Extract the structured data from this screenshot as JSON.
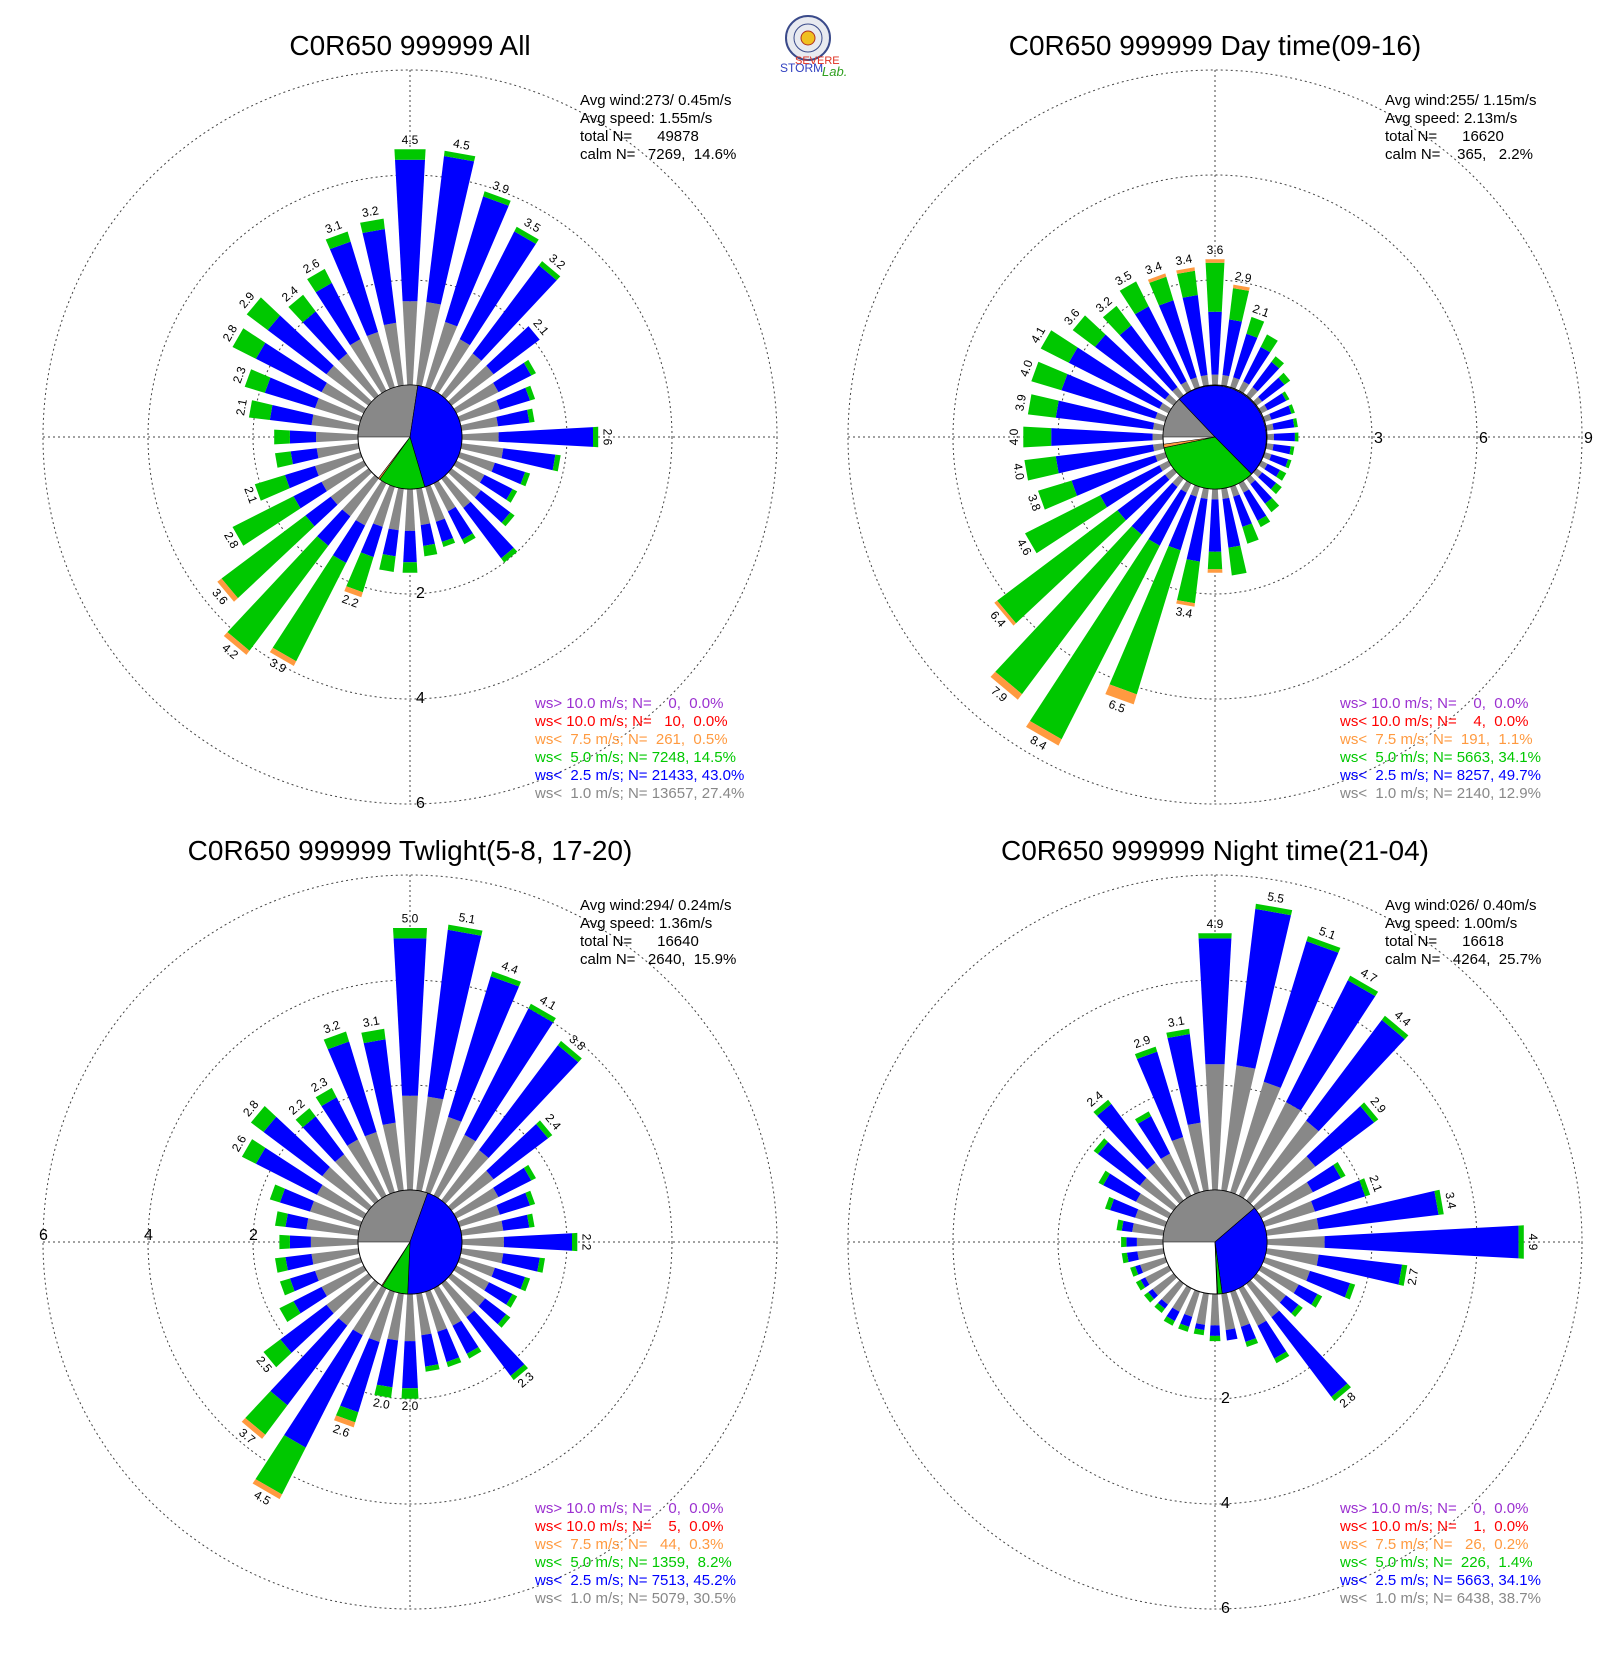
{
  "logo": {
    "text_severe": "SEVERE",
    "text_storm": "STORM",
    "text_lab": "Lab."
  },
  "colors": {
    "gt10": "#9b30d0",
    "lt10": "#ff0000",
    "lt75": "#ff9a40",
    "lt5": "#00c800",
    "lt25": "#0000ff",
    "lt1": "#888888",
    "grid": "#444444"
  },
  "chart_data": [
    {
      "type": "wind-rose",
      "title": "C0R650 999999 All",
      "stats": [
        "Avg wind:273/ 0.45m/s",
        "Avg speed: 1.55m/s",
        "total N=      49878",
        "calm N=   7269,  14.6%"
      ],
      "rings": [
        2,
        4,
        6
      ],
      "ring_labels": [
        "2",
        "4",
        "6"
      ],
      "ring_label_side": "bottom",
      "calm_slices": {
        "lt1": 27.4,
        "lt25": 43.0,
        "lt5": 14.5,
        "lt75": 0.5,
        "lt10": 0.0,
        "gt10": 0.0
      },
      "directions_deg": [
        0,
        10,
        20,
        30,
        40,
        50,
        60,
        70,
        80,
        90,
        100,
        110,
        120,
        130,
        140,
        150,
        160,
        170,
        180,
        190,
        200,
        210,
        220,
        230,
        240,
        250,
        260,
        270,
        280,
        290,
        300,
        310,
        320,
        330,
        340,
        350
      ],
      "totals": [
        4.5,
        4.5,
        3.9,
        3.5,
        3.2,
        2.1,
        1.7,
        1.5,
        1.4,
        2.6,
        1.9,
        1.4,
        1.3,
        1.5,
        2.0,
        1.3,
        1.2,
        1.3,
        1.6,
        1.6,
        2.2,
        3.9,
        4.2,
        3.6,
        2.8,
        2.1,
        1.6,
        1.6,
        2.1,
        2.3,
        2.8,
        2.9,
        2.4,
        2.6,
        3.1,
        3.2
      ],
      "gray": [
        1.6,
        1.6,
        1.3,
        1.1,
        1.0,
        1.0,
        0.9,
        0.8,
        0.7,
        0.7,
        0.8,
        0.7,
        0.6,
        0.7,
        0.7,
        0.6,
        0.7,
        0.7,
        0.8,
        0.8,
        0.8,
        0.9,
        0.9,
        0.9,
        0.9,
        0.9,
        0.8,
        0.8,
        0.9,
        0.9,
        0.9,
        1.0,
        1.0,
        1.1,
        1.1,
        1.2
      ],
      "blue": [
        2.7,
        2.8,
        2.5,
        2.3,
        2.1,
        1.1,
        0.7,
        0.6,
        0.6,
        1.8,
        1.0,
        0.6,
        0.6,
        0.7,
        1.2,
        0.6,
        0.4,
        0.4,
        0.6,
        0.5,
        0.6,
        0.8,
        0.7,
        0.6,
        0.6,
        0.6,
        0.5,
        0.5,
        0.8,
        1.0,
        1.4,
        1.4,
        1.0,
        1.2,
        1.8,
        1.8
      ],
      "green": [
        0.2,
        0.1,
        0.1,
        0.1,
        0.1,
        0.0,
        0.1,
        0.1,
        0.1,
        0.1,
        0.1,
        0.1,
        0.1,
        0.1,
        0.1,
        0.1,
        0.1,
        0.2,
        0.2,
        0.3,
        0.7,
        2.1,
        2.5,
        2.0,
        1.3,
        0.6,
        0.3,
        0.3,
        0.4,
        0.4,
        0.5,
        0.5,
        0.4,
        0.3,
        0.2,
        0.2
      ],
      "orange": [
        0,
        0,
        0,
        0,
        0,
        0,
        0,
        0,
        0,
        0,
        0,
        0,
        0,
        0,
        0,
        0,
        0,
        0,
        0,
        0,
        0.1,
        0.1,
        0.1,
        0.1,
        0,
        0,
        0,
        0,
        0,
        0,
        0,
        0,
        0,
        0,
        0,
        0
      ],
      "labels": [
        "4.5",
        "4.5",
        "3.9",
        "3.5",
        "3.2",
        "2.1",
        "",
        "",
        "",
        "2.6",
        "",
        "",
        "",
        "",
        "",
        "",
        "",
        "",
        "",
        "",
        "2.2",
        "3.9",
        "4.2",
        "3.6",
        "2.8",
        "2.1",
        "",
        "",
        "2.1",
        "2.3",
        "2.8",
        "2.9",
        "2.4",
        "2.6",
        "3.1",
        "3.2"
      ],
      "legend": [
        {
          "key": "gt10",
          "text": "ws> 10.0 m/s; N=    0,  0.0%"
        },
        {
          "key": "lt10",
          "text": "ws< 10.0 m/s; N=   10,  0.0%"
        },
        {
          "key": "lt75",
          "text": "ws<  7.5 m/s; N=  261,  0.5%"
        },
        {
          "key": "lt5",
          "text": "ws<  5.0 m/s; N= 7248, 14.5%"
        },
        {
          "key": "lt25",
          "text": "ws<  2.5 m/s; N= 21433, 43.0%"
        },
        {
          "key": "lt1",
          "text": "ws<  1.0 m/s; N= 13657, 27.4%"
        }
      ]
    },
    {
      "type": "wind-rose",
      "title": "C0R650 999999 Day time(09-16)",
      "stats": [
        "Avg wind:255/ 1.15m/s",
        "Avg speed: 2.13m/s",
        "total N=      16620",
        "calm N=    365,   2.2%"
      ],
      "rings": [
        3,
        6,
        9
      ],
      "ring_labels": [
        "3",
        "6",
        "9"
      ],
      "ring_label_side": "right",
      "calm_slices": {
        "lt1": 12.9,
        "lt25": 49.7,
        "lt5": 34.1,
        "lt75": 1.1,
        "lt10": 0.0,
        "gt10": 0.0
      },
      "directions_deg": [
        0,
        10,
        20,
        30,
        40,
        50,
        60,
        70,
        80,
        90,
        100,
        110,
        120,
        130,
        140,
        150,
        160,
        170,
        180,
        190,
        200,
        210,
        220,
        230,
        240,
        250,
        260,
        270,
        280,
        290,
        300,
        310,
        320,
        330,
        340,
        350
      ],
      "totals": [
        3.6,
        2.9,
        2.1,
        1.8,
        1.4,
        1.2,
        0.9,
        0.9,
        0.9,
        0.9,
        0.8,
        0.8,
        0.8,
        0.9,
        1.2,
        1.4,
        1.7,
        2.5,
        2.4,
        3.4,
        6.5,
        8.4,
        7.9,
        6.4,
        4.6,
        3.8,
        4.0,
        4.0,
        3.9,
        4.0,
        4.1,
        3.6,
        3.2,
        3.5,
        3.4,
        3.4
      ],
      "gray": [
        0.3,
        0.3,
        0.3,
        0.3,
        0.3,
        0.2,
        0.2,
        0.2,
        0.2,
        0.2,
        0.2,
        0.2,
        0.2,
        0.2,
        0.2,
        0.3,
        0.3,
        0.3,
        0.3,
        0.3,
        0.3,
        0.3,
        0.3,
        0.3,
        0.3,
        0.3,
        0.3,
        0.3,
        0.3,
        0.3,
        0.3,
        0.3,
        0.3,
        0.3,
        0.3,
        0.3
      ],
      "blue": [
        1.8,
        1.6,
        1.3,
        1.1,
        0.9,
        0.8,
        0.6,
        0.6,
        0.6,
        0.6,
        0.5,
        0.5,
        0.4,
        0.5,
        0.7,
        0.9,
        0.9,
        1.4,
        1.5,
        1.8,
        1.6,
        1.7,
        1.7,
        1.7,
        1.9,
        2.5,
        2.8,
        2.9,
        2.8,
        2.8,
        2.9,
        2.5,
        2.2,
        2.4,
        2.3,
        2.3
      ],
      "green": [
        1.4,
        0.9,
        0.5,
        0.4,
        0.2,
        0.2,
        0.1,
        0.1,
        0.1,
        0.1,
        0.1,
        0.1,
        0.2,
        0.2,
        0.3,
        0.2,
        0.5,
        0.8,
        0.5,
        1.2,
        4.3,
        6.2,
        5.7,
        4.3,
        2.4,
        1.0,
        0.9,
        0.8,
        0.8,
        0.9,
        0.9,
        0.8,
        0.7,
        0.8,
        0.7,
        0.7
      ],
      "orange": [
        0.1,
        0.1,
        0,
        0,
        0,
        0,
        0,
        0,
        0,
        0,
        0,
        0,
        0,
        0,
        0,
        0,
        0,
        0,
        0.1,
        0.1,
        0.3,
        0.2,
        0.2,
        0.1,
        0,
        0,
        0,
        0,
        0,
        0,
        0,
        0,
        0,
        0,
        0.1,
        0.1
      ],
      "labels": [
        "3.6",
        "2.9",
        "2.1",
        "",
        "",
        "",
        "",
        "",
        "",
        "",
        "",
        "",
        "",
        "",
        "",
        "",
        "",
        "",
        "",
        "3.4",
        "6.5",
        "8.4",
        "7.9",
        "6.4",
        "4.6",
        "3.8",
        "4.0",
        "4.0",
        "3.9",
        "4.0",
        "4.1",
        "3.6",
        "3.2",
        "3.5",
        "3.4",
        "3.4"
      ],
      "legend": [
        {
          "key": "gt10",
          "text": "ws> 10.0 m/s; N=    0,  0.0%"
        },
        {
          "key": "lt10",
          "text": "ws< 10.0 m/s; N=    4,  0.0%"
        },
        {
          "key": "lt75",
          "text": "ws<  7.5 m/s; N=  191,  1.1%"
        },
        {
          "key": "lt5",
          "text": "ws<  5.0 m/s; N= 5663, 34.1%"
        },
        {
          "key": "lt25",
          "text": "ws<  2.5 m/s; N= 8257, 49.7%"
        },
        {
          "key": "lt1",
          "text": "ws<  1.0 m/s; N= 2140, 12.9%"
        }
      ]
    },
    {
      "type": "wind-rose",
      "title": "C0R650 999999 Twlight(5-8, 17-20)",
      "stats": [
        "Avg wind:294/ 0.24m/s",
        "Avg speed: 1.36m/s",
        "total N=      16640",
        "calm N=   2640,  15.9%"
      ],
      "rings": [
        2,
        4,
        6
      ],
      "ring_labels": [
        "2",
        "4",
        "6"
      ],
      "ring_label_side": "left",
      "calm_slices": {
        "lt1": 30.5,
        "lt25": 45.2,
        "lt5": 8.2,
        "lt75": 0.3,
        "lt10": 0.0,
        "gt10": 0.0
      },
      "directions_deg": [
        0,
        10,
        20,
        30,
        40,
        50,
        60,
        70,
        80,
        90,
        100,
        110,
        120,
        130,
        140,
        150,
        160,
        170,
        180,
        190,
        200,
        210,
        220,
        230,
        240,
        250,
        260,
        270,
        280,
        290,
        300,
        310,
        320,
        330,
        340,
        350
      ],
      "totals": [
        5.0,
        5.1,
        4.4,
        4.1,
        3.8,
        2.4,
        1.7,
        1.5,
        1.4,
        2.2,
        1.6,
        1.4,
        1.3,
        1.4,
        2.3,
        1.5,
        1.5,
        1.5,
        2.0,
        2.0,
        2.6,
        4.5,
        3.7,
        2.5,
        1.8,
        1.6,
        1.6,
        1.5,
        1.6,
        1.8,
        2.6,
        2.8,
        2.2,
        2.3,
        3.2,
        3.1
      ],
      "gray": [
        1.8,
        1.8,
        1.5,
        1.3,
        1.2,
        1.0,
        0.9,
        0.8,
        0.8,
        0.8,
        0.8,
        0.7,
        0.7,
        0.8,
        0.8,
        0.8,
        0.8,
        0.8,
        0.9,
        0.9,
        1.0,
        1.0,
        1.0,
        1.0,
        0.9,
        0.9,
        0.9,
        0.9,
        1.0,
        1.0,
        1.0,
        1.1,
        1.1,
        1.2,
        1.2,
        1.3
      ],
      "blue": [
        3.0,
        3.2,
        2.8,
        2.7,
        2.5,
        1.3,
        0.7,
        0.6,
        0.5,
        1.3,
        0.7,
        0.6,
        0.5,
        0.5,
        1.4,
        0.6,
        0.6,
        0.6,
        0.9,
        0.9,
        1.4,
        2.4,
        1.9,
        1.1,
        0.6,
        0.5,
        0.5,
        0.4,
        0.4,
        0.6,
        1.3,
        1.4,
        0.9,
        0.9,
        1.8,
        1.6
      ],
      "green": [
        0.2,
        0.1,
        0.1,
        0.1,
        0.1,
        0.1,
        0.1,
        0.1,
        0.1,
        0.1,
        0.1,
        0.1,
        0.1,
        0.1,
        0.1,
        0.1,
        0.1,
        0.1,
        0.2,
        0.2,
        0.2,
        1.0,
        0.7,
        0.4,
        0.3,
        0.2,
        0.2,
        0.2,
        0.2,
        0.2,
        0.3,
        0.3,
        0.2,
        0.2,
        0.2,
        0.2
      ],
      "orange": [
        0,
        0,
        0,
        0,
        0,
        0,
        0,
        0,
        0,
        0,
        0,
        0,
        0,
        0,
        0,
        0,
        0,
        0,
        0,
        0,
        0.1,
        0.1,
        0.1,
        0,
        0,
        0,
        0,
        0,
        0,
        0,
        0,
        0,
        0,
        0,
        0,
        0
      ],
      "labels": [
        "5.0",
        "5.1",
        "4.4",
        "4.1",
        "3.8",
        "2.4",
        "",
        "",
        "",
        "2.2",
        "",
        "",
        "",
        "",
        "2.3",
        "",
        "",
        "",
        "2.0",
        "2.0",
        "2.6",
        "4.5",
        "3.7",
        "2.5",
        "",
        "",
        "",
        "",
        "",
        "",
        "2.6",
        "2.8",
        "2.2",
        "2.3",
        "3.2",
        "3.1"
      ],
      "legend": [
        {
          "key": "gt10",
          "text": "ws> 10.0 m/s; N=    0,  0.0%"
        },
        {
          "key": "lt10",
          "text": "ws< 10.0 m/s; N=    5,  0.0%"
        },
        {
          "key": "lt75",
          "text": "ws<  7.5 m/s; N=   44,  0.3%"
        },
        {
          "key": "lt5",
          "text": "ws<  5.0 m/s; N= 1359,  8.2%"
        },
        {
          "key": "lt25",
          "text": "ws<  2.5 m/s; N= 7513, 45.2%"
        },
        {
          "key": "lt1",
          "text": "ws<  1.0 m/s; N= 5079, 30.5%"
        }
      ]
    },
    {
      "type": "wind-rose",
      "title": "C0R650 999999 Night time(21-04)",
      "stats": [
        "Avg wind:026/ 0.40m/s",
        "Avg speed: 1.00m/s",
        "total N=      16618",
        "calm N=   4264,  25.7%"
      ],
      "rings": [
        2,
        4,
        6
      ],
      "ring_labels": [
        "2",
        "4",
        "6"
      ],
      "ring_label_side": "bottom",
      "calm_slices": {
        "lt1": 38.7,
        "lt25": 34.1,
        "lt5": 1.4,
        "lt75": 0.2,
        "lt10": 0.0,
        "gt10": 0.0
      },
      "directions_deg": [
        0,
        10,
        20,
        30,
        40,
        50,
        60,
        70,
        80,
        90,
        100,
        110,
        120,
        130,
        140,
        150,
        160,
        170,
        180,
        190,
        200,
        210,
        220,
        230,
        240,
        250,
        260,
        270,
        280,
        290,
        300,
        310,
        320,
        330,
        340,
        350
      ],
      "totals": [
        4.9,
        5.5,
        5.1,
        4.7,
        4.4,
        2.9,
        1.8,
        2.1,
        3.4,
        4.9,
        2.7,
        1.8,
        1.3,
        1.1,
        2.8,
        1.6,
        1.1,
        0.9,
        0.9,
        0.8,
        0.8,
        0.8,
        0.7,
        0.7,
        0.7,
        0.7,
        0.8,
        0.8,
        0.9,
        1.2,
        1.5,
        1.9,
        2.4,
        1.8,
        2.9,
        3.1
      ],
      "gray": [
        2.4,
        2.4,
        2.2,
        2.0,
        1.9,
        1.4,
        1.1,
        1.0,
        1.0,
        1.1,
        1.0,
        0.9,
        0.8,
        0.7,
        0.8,
        0.8,
        0.7,
        0.7,
        0.6,
        0.6,
        0.5,
        0.5,
        0.5,
        0.5,
        0.5,
        0.5,
        0.5,
        0.5,
        0.6,
        0.6,
        0.7,
        0.8,
        0.9,
        0.9,
        1.1,
        1.3
      ],
      "blue": [
        2.4,
        3.0,
        2.8,
        2.6,
        2.4,
        1.4,
        0.6,
        1.0,
        2.3,
        3.7,
        1.6,
        0.8,
        0.4,
        0.3,
        1.9,
        0.7,
        0.3,
        0.2,
        0.2,
        0.1,
        0.2,
        0.2,
        0.1,
        0.1,
        0.1,
        0.1,
        0.2,
        0.2,
        0.2,
        0.5,
        0.7,
        1.0,
        1.4,
        0.8,
        1.7,
        1.7
      ],
      "green": [
        0.1,
        0.1,
        0.1,
        0.1,
        0.1,
        0.1,
        0.1,
        0.1,
        0.1,
        0.1,
        0.1,
        0.1,
        0.1,
        0.1,
        0.1,
        0.1,
        0.1,
        0,
        0.1,
        0.1,
        0.1,
        0.1,
        0.1,
        0.1,
        0.1,
        0.1,
        0.1,
        0.1,
        0.1,
        0.1,
        0.1,
        0.1,
        0.1,
        0.1,
        0.1,
        0.1
      ],
      "orange": [
        0,
        0,
        0,
        0,
        0,
        0,
        0,
        0,
        0,
        0,
        0,
        0,
        0,
        0,
        0,
        0,
        0,
        0,
        0,
        0,
        0,
        0,
        0,
        0,
        0,
        0,
        0,
        0,
        0,
        0,
        0,
        0,
        0,
        0,
        0,
        0
      ],
      "labels": [
        "4.9",
        "5.5",
        "5.1",
        "4.7",
        "4.4",
        "2.9",
        "",
        "2.1",
        "3.4",
        "4.9",
        "2.7",
        "",
        "",
        "",
        "2.8",
        "",
        "",
        "",
        "",
        "",
        "",
        "",
        "",
        "",
        "",
        "",
        "",
        "",
        "",
        "",
        "",
        "",
        "2.4",
        "",
        "2.9",
        "3.1"
      ],
      "legend": [
        {
          "key": "gt10",
          "text": "ws> 10.0 m/s; N=    0,  0.0%"
        },
        {
          "key": "lt10",
          "text": "ws< 10.0 m/s; N=    1,  0.0%"
        },
        {
          "key": "lt75",
          "text": "ws<  7.5 m/s; N=   26,  0.2%"
        },
        {
          "key": "lt5",
          "text": "ws<  5.0 m/s; N=  226,  1.4%"
        },
        {
          "key": "lt25",
          "text": "ws<  2.5 m/s; N= 5663, 34.1%"
        },
        {
          "key": "lt1",
          "text": "ws<  1.0 m/s; N= 6438, 38.7%"
        }
      ]
    }
  ]
}
